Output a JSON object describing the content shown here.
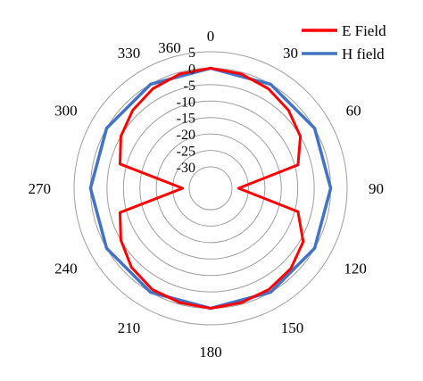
{
  "chart_data": {
    "type": "radar",
    "r_range": [
      -30,
      5
    ],
    "r_ticks": [
      "5",
      "0",
      "-5",
      "-10",
      "-15",
      "-20",
      "-25",
      "-30"
    ],
    "angle_ticks": [
      "0",
      "30",
      "60",
      "90",
      "120",
      "150",
      "180",
      "210",
      "240",
      "270",
      "300",
      "330",
      "360"
    ],
    "grid": true,
    "legend_position": "top-right",
    "colors": {
      "grid": "#9e9e9e",
      "e_field": "#ff0000",
      "h_field": "#4472c4"
    },
    "series": [
      {
        "name": "E Field",
        "color": "#ff0000",
        "points": [
          [
            0,
            0
          ],
          [
            15,
            -0.5
          ],
          [
            30,
            -1.5
          ],
          [
            45,
            -3
          ],
          [
            60,
            -5
          ],
          [
            75,
            -9
          ],
          [
            90,
            -28
          ],
          [
            105,
            -9
          ],
          [
            120,
            -4
          ],
          [
            135,
            -2
          ],
          [
            150,
            -1
          ],
          [
            165,
            -0.5
          ],
          [
            180,
            0
          ],
          [
            195,
            -0.5
          ],
          [
            210,
            -1
          ],
          [
            225,
            -2.5
          ],
          [
            240,
            -5
          ],
          [
            255,
            -8
          ],
          [
            270,
            -28
          ],
          [
            285,
            -8
          ],
          [
            300,
            -5
          ],
          [
            315,
            -3
          ],
          [
            330,
            -1.5
          ],
          [
            345,
            -0.5
          ],
          [
            360,
            0
          ]
        ]
      },
      {
        "name": "H field",
        "color": "#4472c4",
        "points": [
          [
            0,
            0
          ],
          [
            30,
            0
          ],
          [
            60,
            0
          ],
          [
            90,
            0
          ],
          [
            120,
            0
          ],
          [
            150,
            0
          ],
          [
            180,
            0
          ],
          [
            210,
            0
          ],
          [
            240,
            0
          ],
          [
            270,
            0
          ],
          [
            300,
            0
          ],
          [
            330,
            0
          ],
          [
            360,
            0
          ]
        ]
      }
    ]
  }
}
